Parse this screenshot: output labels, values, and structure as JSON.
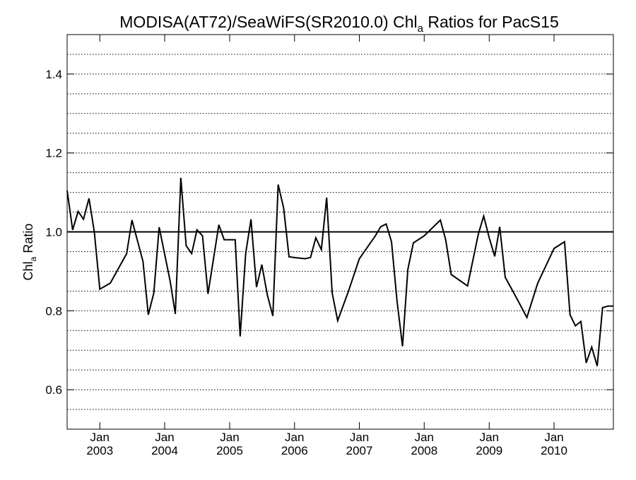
{
  "chart_data": {
    "type": "line",
    "title": "MODISA(AT72)/SeaWiFS(SR2010.0)  Chl",
    "title_subscript": "a",
    "title_suffix": " Ratios for PacS15",
    "ylabel": "Chl",
    "ylabel_subscript": "a",
    "ylabel_suffix": " Ratio",
    "xlim": [
      "2002-07-01",
      "2010-12-01"
    ],
    "ylim": [
      0.5,
      1.5
    ],
    "yticks": [
      0.6,
      0.8,
      1.0,
      1.2,
      1.4
    ],
    "ytick_labels": [
      "0.6",
      "0.8",
      "1.0",
      "1.2",
      "1.4"
    ],
    "xticks": [
      {
        "date": "2003-01-01",
        "month": "Jan",
        "year": "2003"
      },
      {
        "date": "2004-01-01",
        "month": "Jan",
        "year": "2004"
      },
      {
        "date": "2005-01-01",
        "month": "Jan",
        "year": "2005"
      },
      {
        "date": "2006-01-01",
        "month": "Jan",
        "year": "2006"
      },
      {
        "date": "2007-01-01",
        "month": "Jan",
        "year": "2007"
      },
      {
        "date": "2008-01-01",
        "month": "Jan",
        "year": "2008"
      },
      {
        "date": "2009-01-01",
        "month": "Jan",
        "year": "2009"
      },
      {
        "date": "2010-01-01",
        "month": "Jan",
        "year": "2010"
      }
    ],
    "grid": "horizontal-dotted",
    "grid_step": 0.05,
    "reference_line": 1.0,
    "line_color": "#000000",
    "series": [
      {
        "x": [
          "2002-07-01",
          "2002-08-01",
          "2002-09-01",
          "2002-10-01",
          "2002-11-01",
          "2002-12-01",
          "2003-01-01",
          "2003-03-01",
          "2003-06-01",
          "2003-07-01",
          "2003-09-01",
          "2003-10-01",
          "2003-11-01",
          "2003-12-01",
          "2004-02-01",
          "2004-03-01",
          "2004-04-01",
          "2004-05-01",
          "2004-06-01",
          "2004-07-01",
          "2004-08-01",
          "2004-09-01",
          "2004-11-01",
          "2004-12-01",
          "2005-02-01",
          "2005-03-01",
          "2005-04-01",
          "2005-05-01",
          "2005-06-01",
          "2005-07-01",
          "2005-08-01",
          "2005-09-01",
          "2005-10-01",
          "2005-11-01",
          "2005-12-01",
          "2006-01-01",
          "2006-03-01",
          "2006-04-01",
          "2006-05-01",
          "2006-06-01",
          "2006-07-01",
          "2006-08-01",
          "2006-09-01",
          "2006-11-01",
          "2007-01-01",
          "2007-04-01",
          "2007-05-01",
          "2007-06-01",
          "2007-07-01",
          "2007-08-01",
          "2007-09-01",
          "2007-10-01",
          "2007-11-01",
          "2008-01-01",
          "2008-04-01",
          "2008-05-01",
          "2008-06-01",
          "2008-09-01",
          "2008-11-01",
          "2008-12-01",
          "2009-01-01",
          "2009-02-01",
          "2009-03-01",
          "2009-04-01",
          "2009-06-01",
          "2009-08-01",
          "2009-10-01",
          "2010-01-01",
          "2010-03-01",
          "2010-04-01",
          "2010-05-01",
          "2010-06-01",
          "2010-07-01",
          "2010-08-01",
          "2010-09-01",
          "2010-10-01",
          "2010-11-01",
          "2010-12-01"
        ],
        "y": [
          1.105,
          1.005,
          1.052,
          1.032,
          1.085,
          1.0,
          0.855,
          0.87,
          0.945,
          1.03,
          0.925,
          0.79,
          0.845,
          1.012,
          0.875,
          0.792,
          1.137,
          0.965,
          0.945,
          1.005,
          0.99,
          0.843,
          1.018,
          0.98,
          0.98,
          0.735,
          0.945,
          1.032,
          0.86,
          0.917,
          0.84,
          0.787,
          1.12,
          1.06,
          0.937,
          0.935,
          0.932,
          0.935,
          0.985,
          0.955,
          1.087,
          0.845,
          0.775,
          0.85,
          0.932,
          0.99,
          1.013,
          1.02,
          0.975,
          0.825,
          0.71,
          0.905,
          0.972,
          0.99,
          1.03,
          0.98,
          0.892,
          0.863,
          0.995,
          1.04,
          0.985,
          0.938,
          1.013,
          0.885,
          0.835,
          0.783,
          0.87,
          0.958,
          0.975,
          0.79,
          0.762,
          0.773,
          0.668,
          0.708,
          0.66,
          0.808,
          0.812,
          0.812
        ]
      }
    ]
  }
}
